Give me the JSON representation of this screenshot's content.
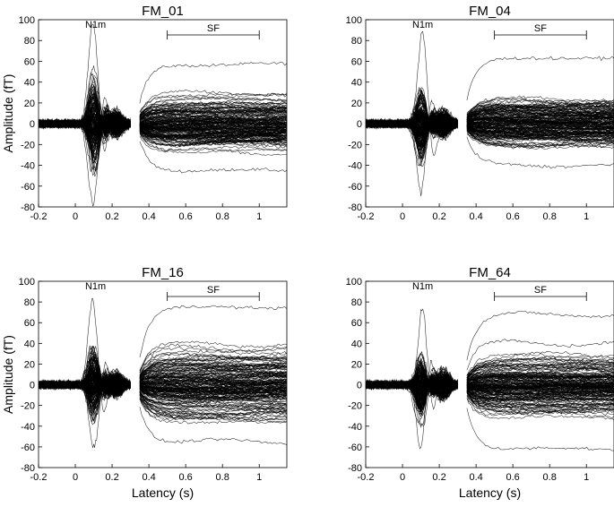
{
  "figure": {
    "colors": {
      "background": "#ffffff",
      "trace": "#000000"
    }
  },
  "chart_data": [
    {
      "type": "line",
      "title": "FM_01",
      "ylabel": "Amplitude (fT)",
      "xlabel": "",
      "xlim": [
        -0.2,
        1.15
      ],
      "ylim": [
        -80,
        100
      ],
      "x_ticks": [
        "-0.2",
        "0",
        "0.2",
        "0.4",
        "0.6",
        "0.8",
        "1"
      ],
      "y_ticks": [
        "100",
        "80",
        "60",
        "40",
        "20",
        "0",
        "-20",
        "-40",
        "-60",
        "-80"
      ],
      "segments": [
        [
          -0.2,
          0.3
        ],
        [
          0.35,
          1.15
        ]
      ],
      "peak_label": "N1m",
      "peak_x": 0.1,
      "peak_max": 95,
      "peak_min": -78,
      "sf_label": "SF",
      "sf_range": [
        0.5,
        1.0
      ],
      "sf_envelope": [
        -45,
        57
      ],
      "grid": false,
      "legend": "none"
    },
    {
      "type": "line",
      "title": "FM_04",
      "ylabel": "",
      "xlabel": "",
      "xlim": [
        -0.2,
        1.15
      ],
      "ylim": [
        -80,
        100
      ],
      "x_ticks": [
        "-0.2",
        "0",
        "0.2",
        "0.4",
        "0.6",
        "0.8",
        "1"
      ],
      "y_ticks": [
        "100",
        "80",
        "60",
        "40",
        "20",
        "0",
        "-20",
        "-40",
        "-60",
        "-80"
      ],
      "segments": [
        [
          -0.2,
          0.3
        ],
        [
          0.35,
          1.15
        ]
      ],
      "peak_label": "N1m",
      "peak_x": 0.1,
      "peak_max": 88,
      "peak_min": -66,
      "sf_label": "SF",
      "sf_range": [
        0.5,
        1.0
      ],
      "sf_envelope": [
        -40,
        63
      ],
      "grid": false,
      "legend": "none"
    },
    {
      "type": "line",
      "title": "FM_16",
      "ylabel": "Amplitude (fT)",
      "xlabel": "Latency (s)",
      "xlim": [
        -0.2,
        1.15
      ],
      "ylim": [
        -80,
        100
      ],
      "x_ticks": [
        "-0.2",
        "0",
        "0.2",
        "0.4",
        "0.6",
        "0.8",
        "1"
      ],
      "y_ticks": [
        "100",
        "80",
        "60",
        "40",
        "20",
        "0",
        "-20",
        "-40",
        "-60",
        "-80"
      ],
      "segments": [
        [
          -0.2,
          0.3
        ],
        [
          0.35,
          1.15
        ]
      ],
      "peak_label": "N1m",
      "peak_x": 0.1,
      "peak_max": 82,
      "peak_min": -60,
      "sf_label": "SF",
      "sf_range": [
        0.5,
        1.0
      ],
      "sf_envelope": [
        -55,
        75
      ],
      "grid": false,
      "legend": "none"
    },
    {
      "type": "line",
      "title": "FM_64",
      "ylabel": "",
      "xlabel": "Latency (s)",
      "xlim": [
        -0.2,
        1.15
      ],
      "ylim": [
        -80,
        100
      ],
      "x_ticks": [
        "-0.2",
        "0",
        "0.2",
        "0.4",
        "0.6",
        "0.8",
        "1"
      ],
      "y_ticks": [
        "100",
        "80",
        "60",
        "40",
        "20",
        "0",
        "-20",
        "-40",
        "-60",
        "-80"
      ],
      "segments": [
        [
          -0.2,
          0.3
        ],
        [
          0.35,
          1.15
        ]
      ],
      "peak_label": "N1m",
      "peak_x": 0.1,
      "peak_max": 76,
      "peak_min": -63,
      "sf_label": "SF",
      "sf_range": [
        0.5,
        1.0
      ],
      "sf_envelope": [
        -62,
        68
      ],
      "grid": false,
      "legend": "none"
    }
  ]
}
